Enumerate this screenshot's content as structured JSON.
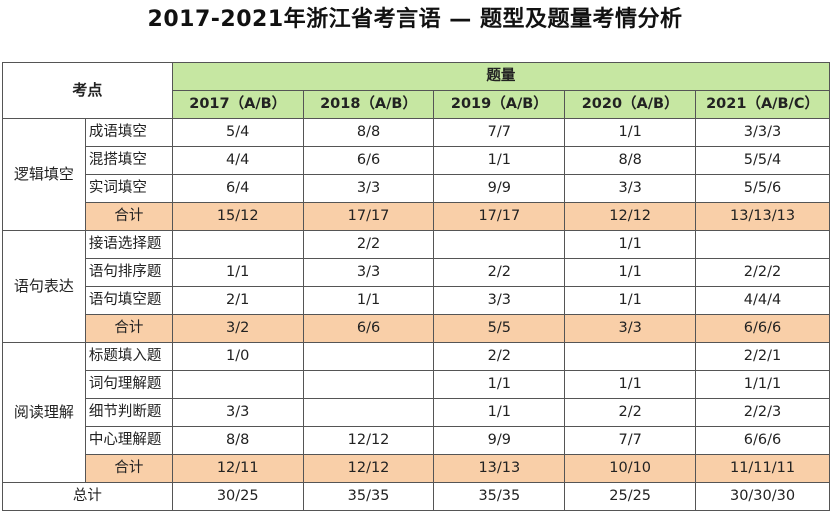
{
  "title": "2017-2021年浙江省考言语 — 题型及题量考情分析",
  "header": {
    "kaodian": "考点",
    "tiliang": "题量",
    "years": [
      "2017（A/B）",
      "2018（A/B）",
      "2019（A/B）",
      "2020（A/B）",
      "2021（A/B/C）"
    ]
  },
  "sections": [
    {
      "category": "逻辑填空",
      "rows": [
        {
          "label": "成语填空",
          "values": [
            "5/4",
            "8/8",
            "7/7",
            "1/1",
            "3/3/3"
          ]
        },
        {
          "label": "混搭填空",
          "values": [
            "4/4",
            "6/6",
            "1/1",
            "8/8",
            "5/5/4"
          ]
        },
        {
          "label": "实词填空",
          "values": [
            "6/4",
            "3/3",
            "9/9",
            "3/3",
            "5/5/6"
          ]
        }
      ],
      "sum": {
        "label": "合计",
        "values": [
          "15/12",
          "17/17",
          "17/17",
          "12/12",
          "13/13/13"
        ]
      }
    },
    {
      "category": "语句表达",
      "rows": [
        {
          "label": "接语选择题",
          "values": [
            "",
            "2/2",
            "",
            "1/1",
            ""
          ]
        },
        {
          "label": "语句排序题",
          "values": [
            "1/1",
            "3/3",
            "2/2",
            "1/1",
            "2/2/2"
          ]
        },
        {
          "label": "语句填空题",
          "values": [
            "2/1",
            "1/1",
            "3/3",
            "1/1",
            "4/4/4"
          ]
        }
      ],
      "sum": {
        "label": "合计",
        "values": [
          "3/2",
          "6/6",
          "5/5",
          "3/3",
          "6/6/6"
        ]
      }
    },
    {
      "category": "阅读理解",
      "rows": [
        {
          "label": "标题填入题",
          "values": [
            "1/0",
            "",
            "2/2",
            "",
            "2/2/1"
          ]
        },
        {
          "label": "词句理解题",
          "values": [
            "",
            "",
            "1/1",
            "1/1",
            "1/1/1"
          ]
        },
        {
          "label": "细节判断题",
          "values": [
            "3/3",
            "",
            "1/1",
            "2/2",
            "2/2/3"
          ]
        },
        {
          "label": "中心理解题",
          "values": [
            "8/8",
            "12/12",
            "9/9",
            "7/7",
            "6/6/6"
          ]
        }
      ],
      "sum": {
        "label": "合计",
        "values": [
          "12/11",
          "12/12",
          "13/13",
          "10/10",
          "11/11/11"
        ]
      }
    }
  ],
  "total": {
    "label": "总计",
    "values": [
      "30/25",
      "35/35",
      "35/35",
      "25/25",
      "30/30/30"
    ]
  },
  "colors": {
    "header_green": "#c6e7a2",
    "sum_orange": "#f9cfa8"
  }
}
